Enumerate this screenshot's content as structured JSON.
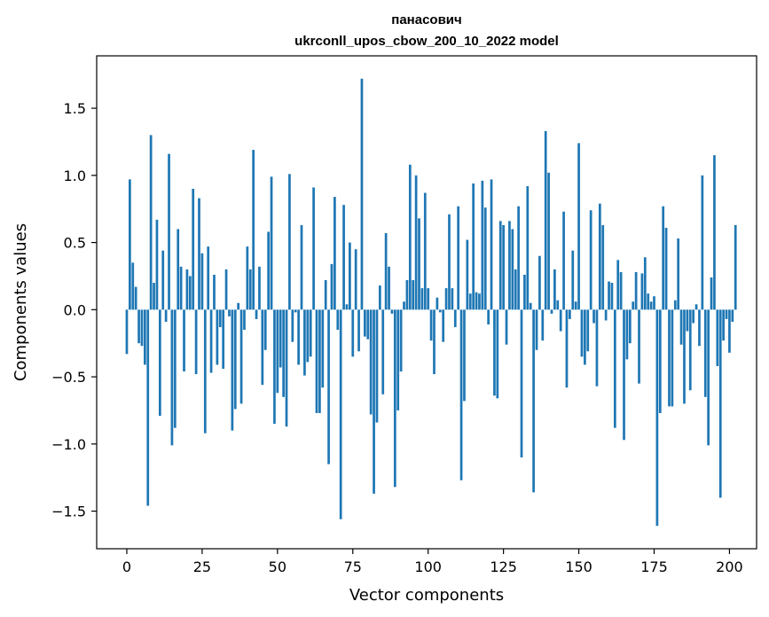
{
  "chart_data": {
    "type": "bar",
    "title": "панасович",
    "subtitle": "ukrconll_upos_cbow_200_10_2022 model",
    "xlabel": "Vector components",
    "ylabel": "Components values",
    "xlim": [
      -10,
      209
    ],
    "ylim": [
      -1.78,
      1.89
    ],
    "xticks": [
      0,
      25,
      50,
      75,
      100,
      125,
      150,
      175,
      200
    ],
    "yticks": [
      -1.5,
      -1.0,
      -0.5,
      0.0,
      0.5,
      1.0,
      1.5
    ],
    "ytick_labels": [
      "−1.5",
      "−1.0",
      "−0.5",
      "0.0",
      "0.5",
      "1.0",
      "1.5"
    ],
    "bar_color": "#1f77b4",
    "grid": false,
    "values": [
      -0.33,
      0.97,
      0.35,
      0.17,
      -0.25,
      -0.27,
      -0.41,
      -1.46,
      1.3,
      0.2,
      0.67,
      -0.79,
      0.44,
      -0.09,
      1.16,
      -1.01,
      -0.88,
      0.6,
      0.32,
      -0.46,
      0.3,
      0.25,
      0.9,
      -0.48,
      0.83,
      0.42,
      -0.92,
      0.47,
      -0.47,
      0.26,
      -0.41,
      -0.13,
      -0.44,
      0.3,
      -0.05,
      -0.9,
      -0.74,
      0.05,
      -0.7,
      -0.15,
      0.47,
      0.3,
      1.19,
      -0.07,
      0.32,
      -0.56,
      -0.3,
      0.58,
      0.99,
      -0.85,
      -0.62,
      -0.43,
      -0.65,
      -0.87,
      1.01,
      -0.24,
      -0.02,
      -0.41,
      0.63,
      -0.49,
      -0.39,
      -0.35,
      0.91,
      -0.77,
      -0.77,
      -0.58,
      0.22,
      -1.15,
      0.34,
      0.84,
      -0.15,
      -1.56,
      0.78,
      0.04,
      0.5,
      -0.35,
      0.45,
      -0.31,
      1.72,
      -0.2,
      -0.22,
      -0.78,
      -1.37,
      -0.84,
      0.18,
      -0.63,
      0.57,
      0.32,
      -0.03,
      -1.32,
      -0.75,
      -0.46,
      0.06,
      0.22,
      1.08,
      0.22,
      1.0,
      0.68,
      0.16,
      0.87,
      0.16,
      -0.23,
      -0.48,
      0.09,
      -0.02,
      -0.24,
      0.16,
      0.71,
      0.16,
      -0.13,
      0.77,
      -1.27,
      -0.68,
      0.52,
      0.12,
      0.94,
      0.13,
      0.12,
      0.96,
      0.76,
      -0.11,
      0.97,
      -0.64,
      -0.66,
      0.66,
      0.63,
      -0.26,
      0.66,
      0.6,
      0.3,
      0.77,
      -1.1,
      0.26,
      0.92,
      0.05,
      -1.36,
      -0.3,
      0.4,
      -0.23,
      1.33,
      1.02,
      -0.03,
      0.3,
      0.07,
      -0.16,
      0.73,
      -0.58,
      -0.07,
      0.44,
      0.06,
      1.24,
      -0.35,
      -0.41,
      -0.31,
      0.74,
      -0.1,
      -0.57,
      0.79,
      0.63,
      -0.08,
      0.21,
      0.2,
      -0.88,
      0.37,
      0.28,
      -0.97,
      -0.37,
      -0.25,
      0.06,
      0.28,
      -0.55,
      0.27,
      0.39,
      0.12,
      0.06,
      0.1,
      -1.61,
      -0.77,
      0.77,
      0.61,
      -0.72,
      -0.72,
      0.07,
      0.53,
      -0.26,
      -0.7,
      -0.16,
      -0.6,
      -0.1,
      0.04,
      -0.27,
      1.0,
      -0.65,
      -1.01,
      0.24,
      1.15,
      -0.42,
      -1.4,
      -0.23,
      -0.07,
      -0.32,
      -0.09,
      0.63
    ]
  }
}
